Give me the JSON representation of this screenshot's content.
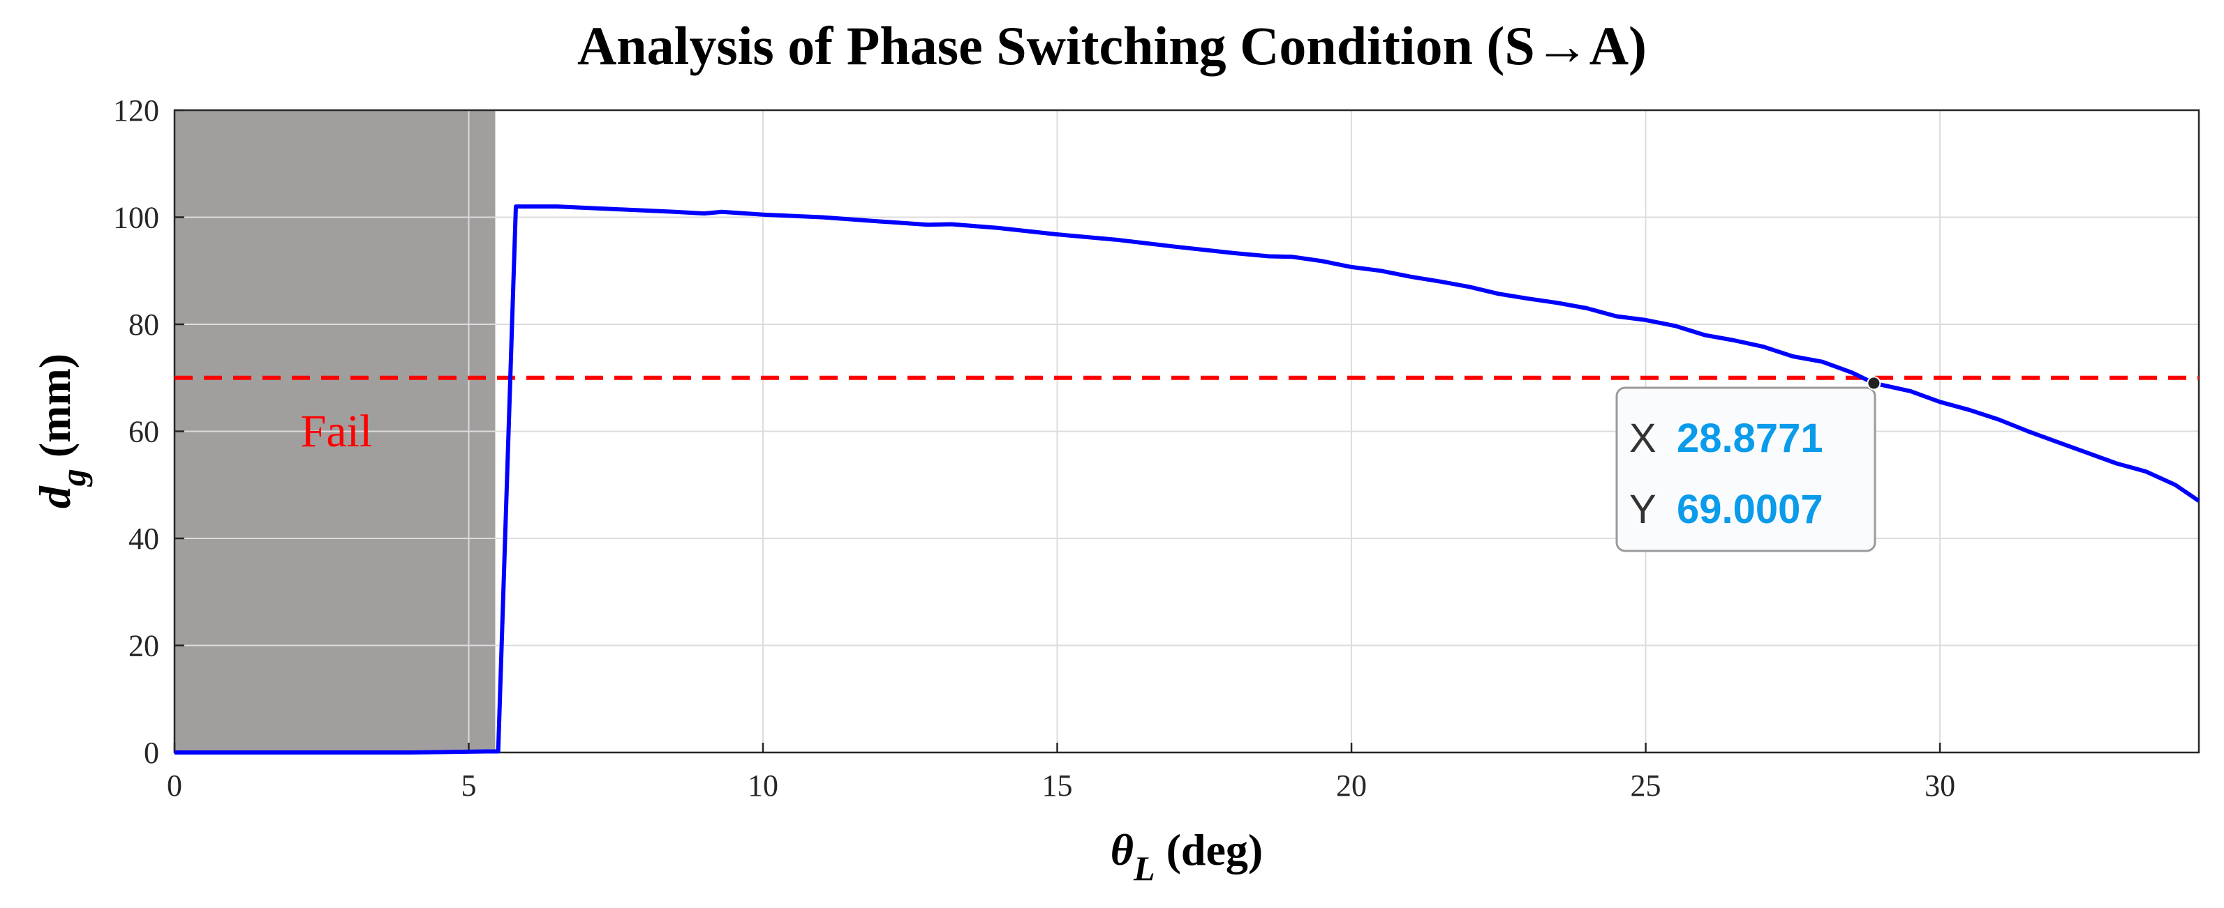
{
  "chart_data": {
    "type": "line",
    "title": "Analysis of Phase Switching Condition (S→A)",
    "xlabel": {
      "symbol": "θ",
      "subscript": "L",
      "unit": " (deg)"
    },
    "ylabel": {
      "symbol": "d",
      "subscript": "g",
      "unit": " (mm)"
    },
    "xlim": [
      0,
      34.4
    ],
    "ylim": [
      0,
      120
    ],
    "xticks": [
      0,
      5,
      10,
      15,
      20,
      25,
      30
    ],
    "yticks": [
      0,
      20,
      40,
      60,
      80,
      100,
      120
    ],
    "grid": true,
    "fail_region": {
      "x_range": [
        0,
        5.45
      ],
      "label": "Fail",
      "color": "#a19e9e"
    },
    "threshold": {
      "y": 70,
      "color": "#ff0000",
      "style": "dashed"
    },
    "series": [
      {
        "name": "d_g",
        "color": "#0000ff",
        "x": [
          0,
          2,
          4,
          5.3,
          5.5,
          5.8,
          6.5,
          7.5,
          8.5,
          9.0,
          9.3,
          10,
          11,
          12,
          12.8,
          13.2,
          14,
          15,
          16,
          17,
          18,
          18.6,
          19.0,
          19.5,
          20,
          20.5,
          21,
          21.5,
          22,
          22.5,
          23,
          23.5,
          24,
          24.5,
          25,
          25.5,
          26,
          26.5,
          27,
          27.5,
          28,
          28.5,
          28.8771,
          29.5,
          30,
          30.5,
          31,
          31.5,
          32,
          32.5,
          33,
          33.5,
          34,
          34.4
        ],
        "y": [
          0,
          0,
          0,
          0.2,
          0.2,
          102,
          102,
          101.5,
          101,
          100.7,
          101,
          100.5,
          100,
          99.2,
          98.6,
          98.7,
          98,
          96.8,
          95.8,
          94.5,
          93.3,
          92.7,
          92.6,
          91.8,
          90.7,
          90,
          88.9,
          88,
          87,
          85.7,
          84.8,
          84,
          83,
          81.5,
          80.8,
          79.7,
          78,
          77,
          75.8,
          74,
          73,
          71,
          69.0007,
          67.5,
          65.5,
          64,
          62.2,
          60,
          58,
          56,
          54,
          52.5,
          50,
          47
        ]
      }
    ],
    "datatip": {
      "x_label": "X",
      "x_value": "28.8771",
      "y_label": "Y",
      "y_value": "69.0007",
      "x": 28.8771,
      "y": 69.0007
    }
  }
}
